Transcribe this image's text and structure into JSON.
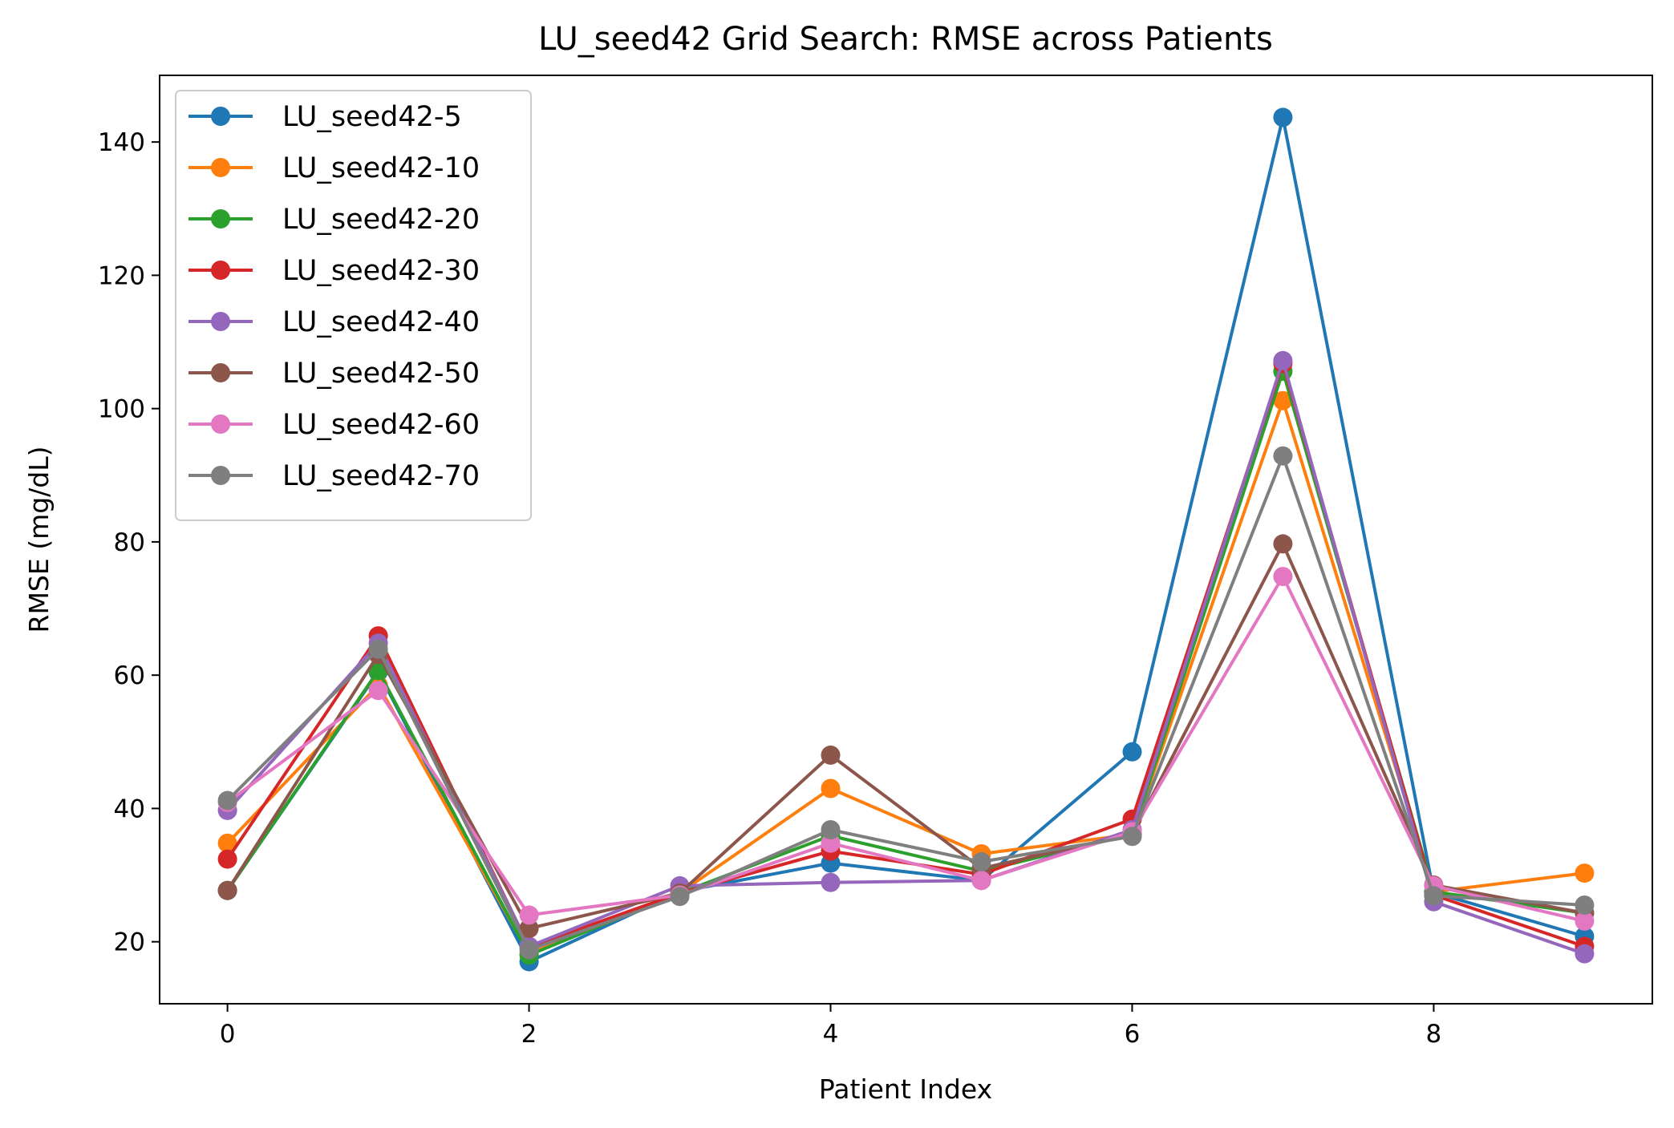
{
  "chart_data": {
    "type": "line",
    "title": "LU_seed42 Grid Search: RMSE across Patients",
    "xlabel": "Patient Index",
    "ylabel": "RMSE (mg/dL)",
    "x": [
      0,
      1,
      2,
      3,
      4,
      5,
      6,
      7,
      8,
      9
    ],
    "xlim": [
      -0.45,
      9.45
    ],
    "ylim": [
      10.7,
      150.0
    ],
    "xticks": [
      0,
      2,
      4,
      6,
      8
    ],
    "yticks": [
      20,
      40,
      60,
      80,
      100,
      120,
      140
    ],
    "grid": false,
    "legend_position": "upper-left",
    "series": [
      {
        "name": "LU_seed42-5",
        "color": "#1f77b4",
        "values": [
          27.7,
          60.5,
          17.0,
          27.5,
          31.8,
          29.2,
          48.5,
          143.7,
          27.4,
          20.8
        ]
      },
      {
        "name": "LU_seed42-10",
        "color": "#ff7f0e",
        "values": [
          34.8,
          58.5,
          18.2,
          27.3,
          43.0,
          33.2,
          36.1,
          101.2,
          27.5,
          30.3
        ]
      },
      {
        "name": "LU_seed42-20",
        "color": "#2ca02c",
        "values": [
          27.7,
          60.7,
          18.0,
          27.3,
          35.9,
          30.6,
          36.1,
          105.6,
          27.5,
          24.3
        ]
      },
      {
        "name": "LU_seed42-30",
        "color": "#d62728",
        "values": [
          32.4,
          65.9,
          19.2,
          27.3,
          33.6,
          30.1,
          38.4,
          106.8,
          27.0,
          19.3
        ]
      },
      {
        "name": "LU_seed42-40",
        "color": "#9467bd",
        "values": [
          39.7,
          64.8,
          19.3,
          28.4,
          28.9,
          29.2,
          36.8,
          107.2,
          26.0,
          18.2
        ]
      },
      {
        "name": "LU_seed42-50",
        "color": "#8c564b",
        "values": [
          27.7,
          63.1,
          22.0,
          27.3,
          48.0,
          31.0,
          36.1,
          79.7,
          28.5,
          24.3
        ]
      },
      {
        "name": "LU_seed42-60",
        "color": "#e377c2",
        "values": [
          40.9,
          57.7,
          24.0,
          27.0,
          34.8,
          29.2,
          36.5,
          74.8,
          28.4,
          23.1
        ]
      },
      {
        "name": "LU_seed42-70",
        "color": "#7f7f7f",
        "values": [
          41.2,
          63.9,
          18.8,
          26.8,
          36.8,
          32.0,
          35.8,
          92.9,
          26.9,
          25.5
        ]
      }
    ]
  }
}
